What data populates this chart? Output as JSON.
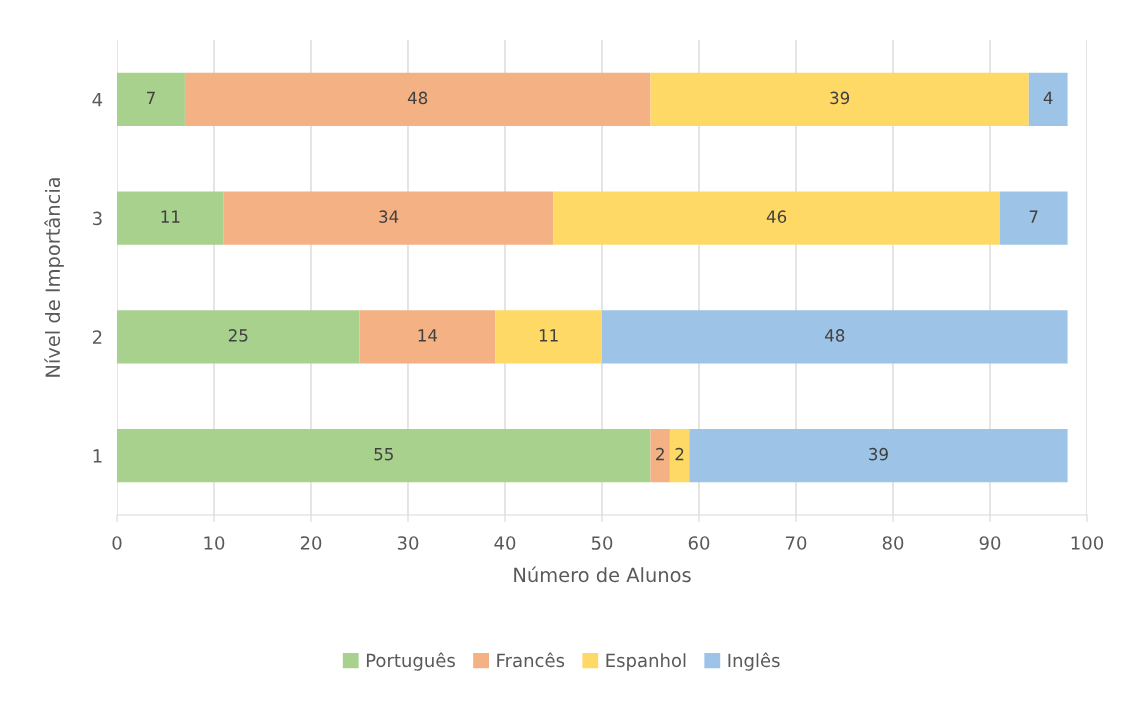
{
  "chart_data": {
    "type": "bar",
    "orientation": "horizontal",
    "stacked": true,
    "xlabel": "Número de Alunos",
    "ylabel": "Nível de Importância",
    "categories": [
      "4",
      "3",
      "2",
      "1"
    ],
    "series": [
      {
        "name": "Português",
        "color": "#a9d18e",
        "values": [
          7,
          11,
          25,
          55
        ]
      },
      {
        "name": "Francês",
        "color": "#f4b183",
        "values": [
          48,
          34,
          14,
          2
        ]
      },
      {
        "name": "Espanhol",
        "color": "#ffd966",
        "values": [
          39,
          46,
          11,
          2
        ]
      },
      {
        "name": "Inglês",
        "color": "#9dc3e6",
        "values": [
          4,
          7,
          48,
          39
        ]
      }
    ],
    "xlim": [
      0,
      100
    ],
    "xticks": [
      0,
      10,
      20,
      30,
      40,
      50,
      60,
      70,
      80,
      90,
      100
    ],
    "grid": "x",
    "legend": "bottom",
    "data_labels": true
  }
}
